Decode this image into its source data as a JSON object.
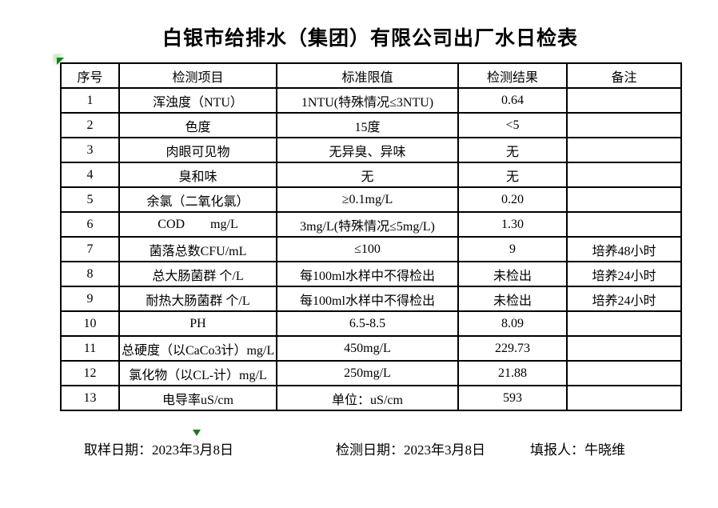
{
  "title": "白银市给排水（集团）有限公司出厂水日检表",
  "table": {
    "headers": {
      "no": "序号",
      "item": "检测项目",
      "limit": "标准限值",
      "result": "检测结果",
      "note": "备注"
    },
    "rows": [
      {
        "no": "1",
        "item": "浑浊度（NTU）",
        "limit": "1NTU(特殊情况≤3NTU)",
        "result": "0.64",
        "note": ""
      },
      {
        "no": "2",
        "item": "色度",
        "limit": "15度",
        "result": "<5",
        "note": ""
      },
      {
        "no": "3",
        "item": "肉眼可见物",
        "limit": "无异臭、异味",
        "result": "无",
        "note": ""
      },
      {
        "no": "4",
        "item": "臭和味",
        "limit": "无",
        "result": "无",
        "note": ""
      },
      {
        "no": "5",
        "item": "余氯（二氧化氯）",
        "limit": "≥0.1mg/L",
        "result": "0.20",
        "note": ""
      },
      {
        "no": "6",
        "item": "COD        mg/L",
        "limit": "3mg/L(特殊情况≤5mg/L)",
        "result": "1.30",
        "note": ""
      },
      {
        "no": "7",
        "item": "菌落总数CFU/mL",
        "limit": "≤100",
        "result": "9",
        "note": "培养48小时"
      },
      {
        "no": "8",
        "item": "总大肠菌群 个/L",
        "limit": "每100ml水样中不得检出",
        "result": "未检出",
        "note": "培养24小时"
      },
      {
        "no": "9",
        "item": "耐热大肠菌群 个/L",
        "limit": "每100ml水样中不得检出",
        "result": "未检出",
        "note": "培养24小时"
      },
      {
        "no": "10",
        "item": "PH",
        "limit": "6.5-8.5",
        "result": "8.09",
        "note": ""
      },
      {
        "no": "11",
        "item": "总硬度（以CaCo3计）mg/L",
        "limit": "450mg/L",
        "result": "229.73",
        "note": ""
      },
      {
        "no": "12",
        "item": "氯化物（以CL-计）mg/L",
        "limit": "250mg/L",
        "result": "21.88",
        "note": ""
      },
      {
        "no": "13",
        "item": "电导率uS/cm",
        "limit": "单位：uS/cm",
        "result": "593",
        "note": ""
      }
    ]
  },
  "footer": {
    "sampling_date": "取样日期：2023年3月8日",
    "test_date": "检测日期：2023年3月8日",
    "reporter": "填报人：牛晓维"
  },
  "marks": {
    "corner_triangle_color": "#1e7a1e",
    "bottom_triangle_color": "#1e7a1e"
  }
}
